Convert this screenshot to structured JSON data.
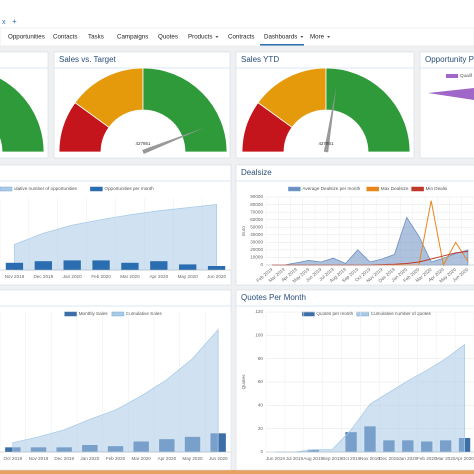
{
  "tabs": {
    "close": "x",
    "add": "+"
  },
  "nav": [
    "Opportunities",
    "Contacts",
    "Tasks",
    "Campaigns",
    "Quotes",
    "Products",
    "Contracts",
    "Dashboards",
    "More"
  ],
  "nav_dropdowns": [
    5,
    7,
    8
  ],
  "nav_active": 7,
  "gauges": [
    {
      "min": 0,
      "max": 100,
      "bands": [
        {
          "to": 20,
          "color": "#c4141c"
        },
        {
          "to": 50,
          "color": "#e59a0c"
        },
        {
          "to": 100,
          "color": "#2e9a3a"
        }
      ]
    },
    {
      "title": "Sales vs. Target",
      "label": "427861",
      "min": 0,
      "max": 100,
      "value": 88,
      "bands": [
        {
          "to": 20,
          "color": "#c4141c"
        },
        {
          "to": 50,
          "color": "#e59a0c"
        },
        {
          "to": 100,
          "color": "#2e9a3a"
        }
      ]
    },
    {
      "title": "Sales YTD",
      "label": "427861",
      "min": 0,
      "max": 100,
      "value": 55,
      "bands": [
        {
          "to": 20,
          "color": "#c4141c"
        },
        {
          "to": 50,
          "color": "#e59a0c"
        },
        {
          "to": 100,
          "color": "#2e9a3a"
        }
      ]
    }
  ],
  "pipeline": {
    "title": "Opportunity Pipe",
    "legend": "Qualif"
  },
  "charts": [
    {
      "ylim": [
        0,
        90
      ],
      "categories": [
        "Nov 2019",
        "Dec 2019",
        "Jan 2020",
        "Feb 2020",
        "Mar 2020",
        "Apr 2020",
        "May 2020",
        "Jun 2020"
      ],
      "series": [
        {
          "name": "ulative number of opportunities",
          "kind": "area",
          "color": "#a9cbe8",
          "values": [
            32,
            46,
            56,
            63,
            69,
            74,
            78,
            82
          ]
        },
        {
          "name": "Opportunities per month",
          "kind": "bar",
          "color": "#2a6db0",
          "values": [
            9,
            11,
            12,
            12,
            9,
            11,
            7,
            5
          ]
        }
      ]
    },
    {
      "title": "Dealsize",
      "ylabel": "Euro",
      "ylim": [
        0,
        90000
      ],
      "yticks": [
        0,
        10000,
        20000,
        30000,
        40000,
        50000,
        60000,
        70000,
        80000,
        90000
      ],
      "rotate": true,
      "categories": [
        "Feb 2019",
        "Mar 2019",
        "Apr 2019",
        "May 2019",
        "Jun 2019",
        "Jul 2019",
        "Aug 2019",
        "Sep 2019",
        "Oct 2019",
        "Nov 2019",
        "Dec 2019",
        "Jan 2020",
        "Feb 2020",
        "Mar 2020",
        "Apr 2020",
        "May 2020",
        "Jun 2020"
      ],
      "series": [
        {
          "name": "Average Dealsize per month",
          "kind": "area",
          "color": "#6b8fc2",
          "values": [
            0,
            0,
            3000,
            6000,
            4000,
            9000,
            2000,
            20000,
            4000,
            8000,
            14000,
            63000,
            38000,
            4000,
            9000,
            15000,
            20000
          ]
        },
        {
          "name": "Max Dealsize",
          "kind": "line",
          "color": "#e8871e",
          "values": [
            0,
            0,
            0,
            0,
            0,
            0,
            0,
            0,
            0,
            0,
            0,
            0,
            0,
            85000,
            0,
            30000,
            5000
          ]
        },
        {
          "name": "Min Dealsi",
          "kind": "line",
          "color": "#c0392b",
          "values": [
            0,
            0,
            0,
            0,
            0,
            0,
            0,
            0,
            0,
            500,
            1000,
            2000,
            4000,
            8000,
            12000,
            16000,
            18000
          ]
        }
      ]
    },
    {
      "ylim": [
        0,
        120
      ],
      "categories": [
        "Oct 2019",
        "Nov 2019",
        "Dec 2019",
        "Jan 2020",
        "Feb 2020",
        "Mar 2020",
        "Apr 2020",
        "May 2020",
        "Jun 2020"
      ],
      "series": [
        {
          "name": "Monthly Sales",
          "kind": "bar",
          "color": "#3c6ea8",
          "values": [
            4,
            4,
            4,
            6,
            5,
            9,
            11,
            13,
            16
          ]
        },
        {
          "name": "Cumulative Sales",
          "kind": "area",
          "color": "#a9cbe8",
          "values": [
            8,
            13,
            19,
            28,
            36,
            48,
            62,
            80,
            105
          ]
        }
      ]
    },
    {
      "title": "Quotes Per Month",
      "ylabel": "Quotes",
      "ylim": [
        0,
        120
      ],
      "yticks": [
        0,
        20,
        40,
        60,
        80,
        100,
        120
      ],
      "categories": [
        "Jun 2019",
        "Jul 2019",
        "Aug 2019",
        "Sep 2019",
        "Oct 2019",
        "Nov 2019",
        "Dec 2019",
        "Jan 2020",
        "Feb 2020",
        "Mar 2020",
        "Apr 2020"
      ],
      "series": [
        {
          "name": "Quotes per month",
          "kind": "bar",
          "color": "#3c6ea8",
          "values": [
            0,
            0,
            2,
            0,
            17,
            22,
            10,
            10,
            9,
            10,
            12
          ]
        },
        {
          "name": "Cumulative number of quotes",
          "kind": "area",
          "color": "#a9cbe8",
          "values": [
            0,
            0,
            2,
            2,
            19,
            41,
            51,
            61,
            70,
            80,
            92
          ]
        }
      ]
    }
  ]
}
